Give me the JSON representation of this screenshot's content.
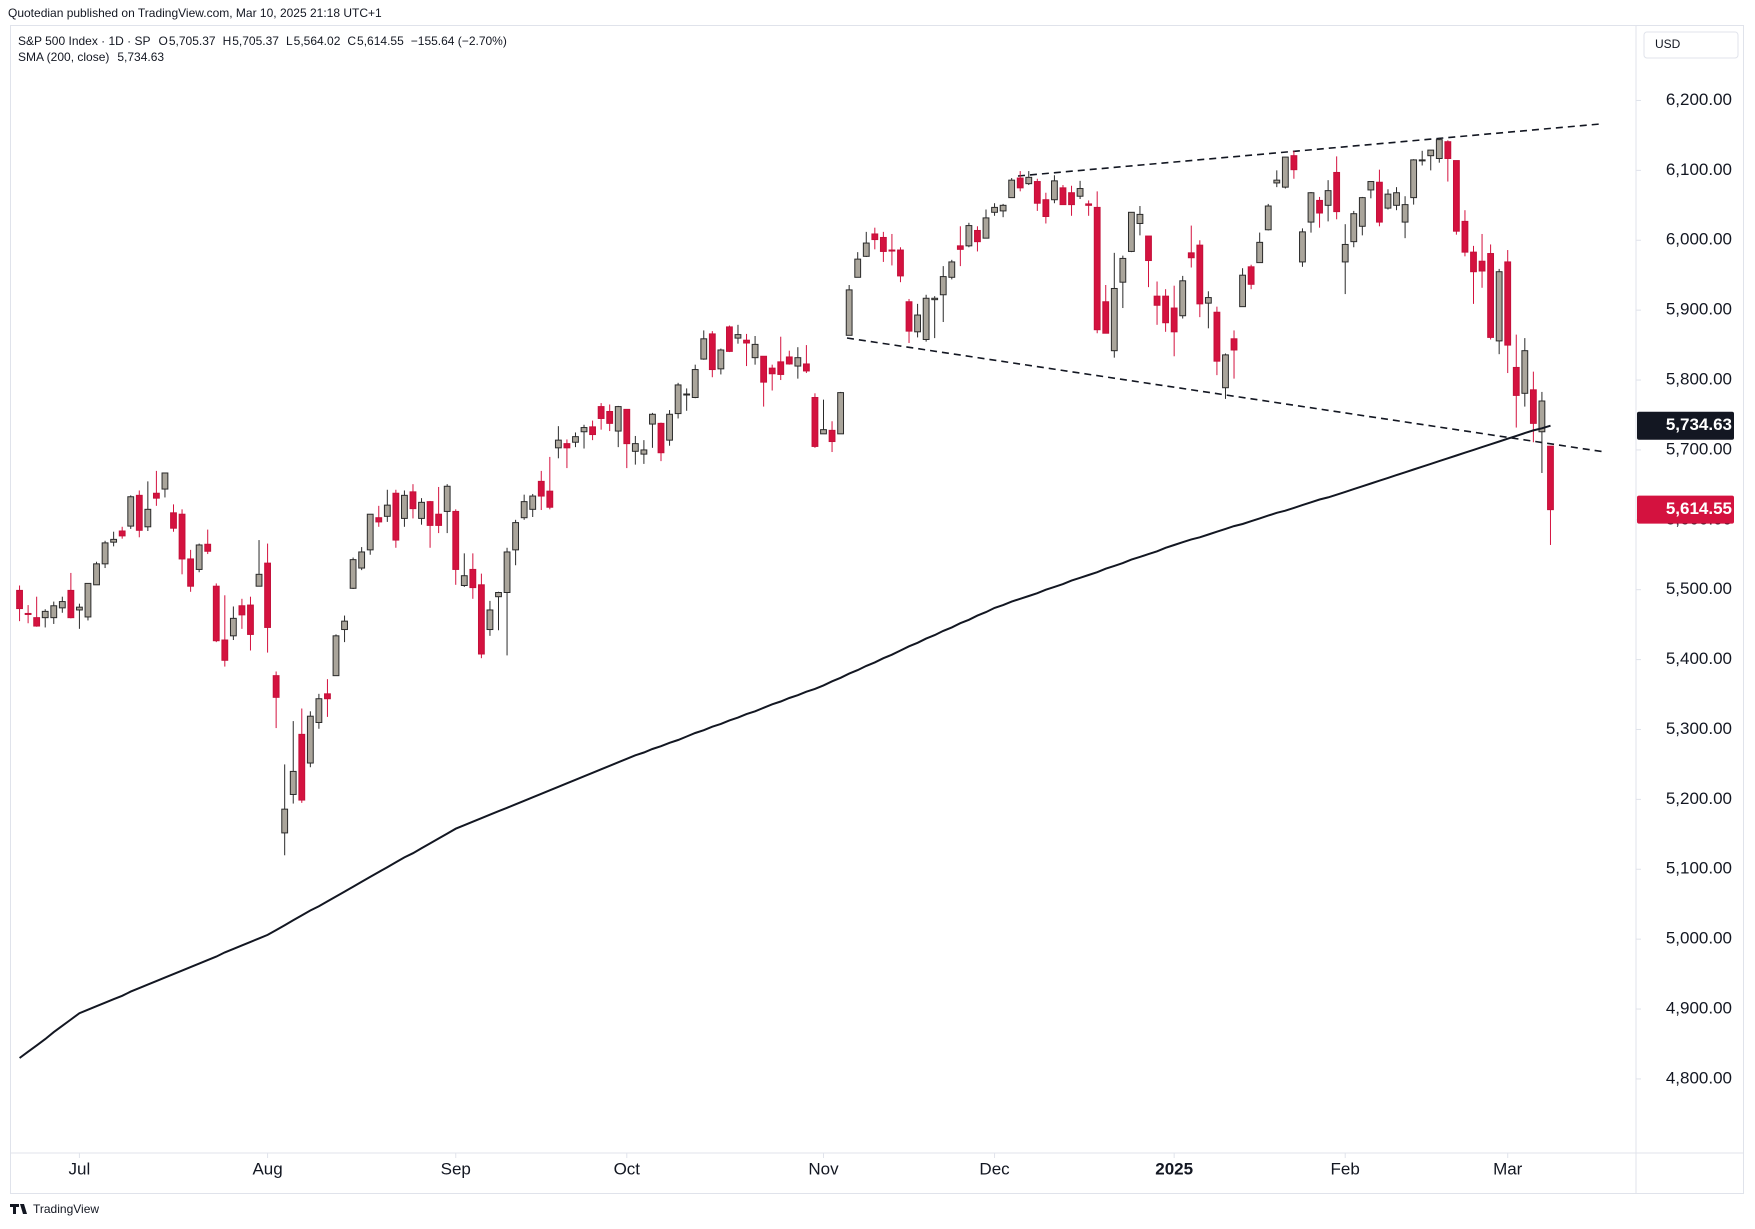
{
  "header": {
    "published": "Quotedian published on TradingView.com, Mar 10, 2025 21:18 UTC+1",
    "symbol": "S&P 500 Index · 1D · SP",
    "ohlc": [
      {
        "key": "O",
        "value": "5,705.37"
      },
      {
        "key": "H",
        "value": "5,705.37"
      },
      {
        "key": "L",
        "value": "5,564.02"
      },
      {
        "key": "C",
        "value": "5,614.55"
      }
    ],
    "change": "−155.64 (−2.70%)",
    "currency": "USD"
  },
  "footer": {
    "brand": "TradingView"
  },
  "chart_data": {
    "type": "candlestick",
    "up_color": "#aaa59b",
    "up_border": "#2a2a2a",
    "down_color": "#d4123f",
    "down_border": "#c4103a",
    "candles": [
      [
        5499,
        5506,
        5455,
        5473
      ],
      [
        5466,
        5478,
        5452,
        5465
      ],
      [
        5460,
        5490,
        5447,
        5448
      ],
      [
        5460,
        5472,
        5446,
        5469
      ],
      [
        5460,
        5483,
        5451,
        5477
      ],
      [
        5474,
        5490,
        5467,
        5483
      ],
      [
        5499,
        5524,
        5459,
        5460
      ],
      [
        5471,
        5480,
        5444,
        5475
      ],
      [
        5461,
        5509,
        5456,
        5509
      ],
      [
        5507,
        5540,
        5507,
        5537
      ],
      [
        5537,
        5570,
        5531,
        5567
      ],
      [
        5568,
        5583,
        5562,
        5572
      ],
      [
        5584,
        5590,
        5573,
        5577
      ],
      [
        5591,
        5635,
        5587,
        5633
      ],
      [
        5635,
        5642,
        5575,
        5585
      ],
      [
        5590,
        5655,
        5584,
        5615
      ],
      [
        5638,
        5670,
        5620,
        5631
      ],
      [
        5644,
        5667,
        5632,
        5667
      ],
      [
        5610,
        5622,
        5583,
        5588
      ],
      [
        5608,
        5615,
        5522,
        5544
      ],
      [
        5544,
        5557,
        5497,
        5505
      ],
      [
        5529,
        5566,
        5525,
        5564
      ],
      [
        5565,
        5586,
        5551,
        5555
      ],
      [
        5505,
        5509,
        5425,
        5427
      ],
      [
        5428,
        5492,
        5390,
        5399
      ],
      [
        5434,
        5476,
        5428,
        5459
      ],
      [
        5477,
        5487,
        5444,
        5464
      ],
      [
        5478,
        5490,
        5413,
        5436
      ],
      [
        5505,
        5571,
        5505,
        5522
      ],
      [
        5538,
        5566,
        5410,
        5446
      ],
      [
        5377,
        5383,
        5302,
        5346
      ],
      [
        5152,
        5250,
        5120,
        5186
      ],
      [
        5207,
        5312,
        5194,
        5240
      ],
      [
        5293,
        5330,
        5195,
        5199
      ],
      [
        5252,
        5326,
        5246,
        5319
      ],
      [
        5310,
        5351,
        5301,
        5344
      ],
      [
        5351,
        5372,
        5318,
        5344
      ],
      [
        5377,
        5436,
        5377,
        5434
      ],
      [
        5443,
        5463,
        5425,
        5455
      ],
      [
        5502,
        5546,
        5501,
        5543
      ],
      [
        5531,
        5561,
        5528,
        5554
      ],
      [
        5557,
        5608,
        5550,
        5608
      ],
      [
        5603,
        5620,
        5590,
        5597
      ],
      [
        5605,
        5643,
        5597,
        5621
      ],
      [
        5638,
        5643,
        5560,
        5571
      ],
      [
        5602,
        5642,
        5590,
        5635
      ],
      [
        5640,
        5651,
        5602,
        5616
      ],
      [
        5602,
        5631,
        5593,
        5625
      ],
      [
        5626,
        5627,
        5560,
        5592
      ],
      [
        5608,
        5647,
        5581,
        5592
      ],
      [
        5612,
        5651,
        5581,
        5648
      ],
      [
        5612,
        5615,
        5507,
        5529
      ],
      [
        5506,
        5552,
        5504,
        5520
      ],
      [
        5529,
        5552,
        5487,
        5503
      ],
      [
        5507,
        5523,
        5402,
        5408
      ],
      [
        5443,
        5484,
        5434,
        5471
      ],
      [
        5490,
        5497,
        5442,
        5496
      ],
      [
        5496,
        5560,
        5406,
        5554
      ],
      [
        5557,
        5600,
        5535,
        5596
      ],
      [
        5603,
        5636,
        5600,
        5626
      ],
      [
        5615,
        5637,
        5604,
        5634
      ],
      [
        5655,
        5670,
        5614,
        5634
      ],
      [
        5641,
        5690,
        5615,
        5618
      ],
      [
        5703,
        5734,
        5688,
        5714
      ],
      [
        5709,
        5715,
        5674,
        5703
      ],
      [
        5711,
        5725,
        5704,
        5719
      ],
      [
        5726,
        5736,
        5702,
        5732
      ],
      [
        5733,
        5742,
        5714,
        5722
      ],
      [
        5762,
        5767,
        5729,
        5745
      ],
      [
        5755,
        5765,
        5727,
        5738
      ],
      [
        5727,
        5763,
        5704,
        5762
      ],
      [
        5758,
        5758,
        5674,
        5709
      ],
      [
        5698,
        5720,
        5679,
        5709
      ],
      [
        5694,
        5714,
        5680,
        5700
      ],
      [
        5737,
        5753,
        5703,
        5751
      ],
      [
        5738,
        5739,
        5684,
        5696
      ],
      [
        5714,
        5757,
        5706,
        5751
      ],
      [
        5752,
        5796,
        5745,
        5793
      ],
      [
        5779,
        5788,
        5756,
        5780
      ],
      [
        5775,
        5822,
        5774,
        5815
      ],
      [
        5830,
        5871,
        5829,
        5859
      ],
      [
        5866,
        5870,
        5804,
        5815
      ],
      [
        5816,
        5845,
        5808,
        5843
      ],
      [
        5876,
        5878,
        5840,
        5841
      ],
      [
        5860,
        5879,
        5852,
        5865
      ],
      [
        5857,
        5866,
        5820,
        5853
      ],
      [
        5832,
        5863,
        5822,
        5851
      ],
      [
        5834,
        5834,
        5762,
        5797
      ],
      [
        5817,
        5822,
        5785,
        5809
      ],
      [
        5826,
        5862,
        5800,
        5808
      ],
      [
        5833,
        5842,
        5822,
        5823
      ],
      [
        5820,
        5847,
        5802,
        5832
      ],
      [
        5823,
        5850,
        5810,
        5813
      ],
      [
        5775,
        5781,
        5703,
        5705
      ],
      [
        5723,
        5772,
        5723,
        5729
      ],
      [
        5728,
        5741,
        5697,
        5712
      ],
      [
        5723,
        5783,
        5723,
        5782
      ],
      [
        5864,
        5936,
        5864,
        5929
      ],
      [
        5947,
        5983,
        5947,
        5973
      ],
      [
        5977,
        6012,
        5976,
        5996
      ],
      [
        6009,
        6018,
        5987,
        6001
      ],
      [
        6004,
        6012,
        5969,
        5984
      ],
      [
        5986,
        6009,
        5964,
        5985
      ],
      [
        5986,
        5990,
        5940,
        5949
      ],
      [
        5912,
        5916,
        5853,
        5870
      ],
      [
        5869,
        5909,
        5861,
        5893
      ],
      [
        5858,
        5922,
        5855,
        5917
      ],
      [
        5915,
        5920,
        5860,
        5917
      ],
      [
        5922,
        5963,
        5883,
        5948
      ],
      [
        5947,
        5972,
        5944,
        5969
      ],
      [
        5992,
        6020,
        5963,
        5987
      ],
      [
        5992,
        6025,
        5990,
        6021
      ],
      [
        6014,
        6020,
        5984,
        5998
      ],
      [
        6003,
        6044,
        6003,
        6032
      ],
      [
        6040,
        6053,
        6035,
        6047
      ],
      [
        6042,
        6052,
        6033,
        6050
      ],
      [
        6061,
        6089,
        6061,
        6086
      ],
      [
        6089,
        6099,
        6070,
        6075
      ],
      [
        6081,
        6099,
        6079,
        6090
      ],
      [
        6084,
        6088,
        6042,
        6053
      ],
      [
        6058,
        6068,
        6024,
        6034
      ],
      [
        6058,
        6093,
        6053,
        6085
      ],
      [
        6075,
        6079,
        6051,
        6051
      ],
      [
        6068,
        6078,
        6035,
        6051
      ],
      [
        6063,
        6085,
        6059,
        6074
      ],
      [
        6052,
        6057,
        6035,
        6050
      ],
      [
        6047,
        6070,
        5867,
        5872
      ],
      [
        5912,
        5936,
        5867,
        5867
      ],
      [
        5842,
        5982,
        5832,
        5931
      ],
      [
        5940,
        5978,
        5903,
        5974
      ],
      [
        5984,
        6040,
        5983,
        6040
      ],
      [
        6024,
        6049,
        6007,
        6037
      ],
      [
        6006,
        6006,
        5933,
        5971
      ],
      [
        5920,
        5941,
        5879,
        5907
      ],
      [
        5920,
        5930,
        5869,
        5882
      ],
      [
        5903,
        5935,
        5834,
        5869
      ],
      [
        5892,
        5949,
        5888,
        5942
      ],
      [
        5982,
        6021,
        5961,
        5975
      ],
      [
        5993,
        6000,
        5890,
        5909
      ],
      [
        5910,
        5927,
        5874,
        5918
      ],
      [
        5897,
        5905,
        5807,
        5827
      ],
      [
        5789,
        5838,
        5773,
        5836
      ],
      [
        5859,
        5871,
        5802,
        5843
      ],
      [
        5905,
        5960,
        5905,
        5950
      ],
      [
        5962,
        5965,
        5930,
        5937
      ],
      [
        5968,
        6011,
        5968,
        5997
      ],
      [
        6015,
        6052,
        6014,
        6049
      ],
      [
        6082,
        6100,
        6076,
        6086
      ],
      [
        6076,
        6119,
        6074,
        6119
      ],
      [
        6121,
        6128,
        6088,
        6101
      ],
      [
        5969,
        6017,
        5962,
        6012
      ],
      [
        6026,
        6069,
        6011,
        6068
      ],
      [
        6057,
        6062,
        6018,
        6039
      ],
      [
        6050,
        6086,
        6027,
        6071
      ],
      [
        6097,
        6120,
        6030,
        6041
      ],
      [
        5969,
        6023,
        5923,
        5994
      ],
      [
        5998,
        6042,
        5990,
        6038
      ],
      [
        6020,
        6062,
        6007,
        6061
      ],
      [
        6072,
        6084,
        6060,
        6084
      ],
      [
        6083,
        6101,
        6020,
        6026
      ],
      [
        6046,
        6073,
        6044,
        6066
      ],
      [
        6050,
        6076,
        6043,
        6068
      ],
      [
        6026,
        6063,
        6003,
        6051
      ],
      [
        6061,
        6116,
        6051,
        6115
      ],
      [
        6114,
        6128,
        6107,
        6115
      ],
      [
        6121,
        6129,
        6100,
        6129
      ],
      [
        6117,
        6147,
        6111,
        6144
      ],
      [
        6141,
        6143,
        6084,
        6117
      ],
      [
        6114,
        6114,
        6008,
        6013
      ],
      [
        6027,
        6043,
        5977,
        5983
      ],
      [
        5983,
        5992,
        5909,
        5955
      ],
      [
        5970,
        6009,
        5932,
        5956
      ],
      [
        5981,
        5994,
        5858,
        5861
      ],
      [
        5856,
        5959,
        5837,
        5955
      ],
      [
        5969,
        5986,
        5810,
        5850
      ],
      [
        5818,
        5865,
        5732,
        5778
      ],
      [
        5781,
        5860,
        5762,
        5842
      ],
      [
        5786,
        5812,
        5711,
        5738
      ],
      [
        5726,
        5783,
        5667,
        5770
      ],
      [
        5705.37,
        5705.37,
        5564.02,
        5614.55
      ]
    ],
    "sma": {
      "name": "SMA (200, close)",
      "color": "#131722",
      "values": [
        4830,
        4839,
        4848,
        4857,
        4867,
        4876,
        4885,
        4894,
        4899,
        4904,
        4909,
        4914,
        4919,
        4925,
        4930,
        4935,
        4940,
        4945,
        4950,
        4955,
        4960,
        4965,
        4970,
        4975,
        4981,
        4986,
        4991,
        4996,
        5001,
        5006,
        5013,
        5020,
        5027,
        5034,
        5041,
        5047,
        5054,
        5061,
        5068,
        5075,
        5082,
        5089,
        5096,
        5103,
        5110,
        5117,
        5123,
        5130,
        5137,
        5144,
        5151,
        5158,
        5163,
        5168,
        5173,
        5178,
        5183,
        5188,
        5193,
        5198,
        5203,
        5208,
        5213,
        5218,
        5223,
        5228,
        5233,
        5238,
        5243,
        5248,
        5253,
        5258,
        5263,
        5267,
        5272,
        5276,
        5281,
        5285,
        5290,
        5295,
        5299,
        5304,
        5308,
        5313,
        5317,
        5322,
        5326,
        5331,
        5336,
        5340,
        5345,
        5349,
        5354,
        5358,
        5363,
        5369,
        5374,
        5380,
        5385,
        5391,
        5396,
        5402,
        5407,
        5413,
        5419,
        5424,
        5430,
        5435,
        5441,
        5446,
        5452,
        5457,
        5463,
        5468,
        5474,
        5478,
        5483,
        5487,
        5491,
        5495,
        5500,
        5504,
        5508,
        5513,
        5517,
        5521,
        5525,
        5530,
        5534,
        5538,
        5543,
        5547,
        5551,
        5555,
        5560,
        5564,
        5568,
        5572,
        5575,
        5579,
        5583,
        5587,
        5591,
        5594,
        5598,
        5602,
        5606,
        5610,
        5613,
        5617,
        5621,
        5625,
        5629,
        5632,
        5636,
        5640,
        5644,
        5648,
        5652,
        5656,
        5660,
        5664,
        5668,
        5672,
        5676,
        5680,
        5684,
        5688,
        5692,
        5696,
        5700,
        5704,
        5708,
        5712,
        5716,
        5720,
        5724,
        5728,
        5731,
        5734.63
      ]
    },
    "price_labels": [
      {
        "value": 5734.63,
        "label": "5,734.63",
        "color": "#131722"
      },
      {
        "value": 5614.55,
        "label": "5,614.55",
        "color": "#d4123f"
      }
    ],
    "xlim": [
      -1,
      189
    ],
    "ylim": [
      4694,
      6308
    ],
    "xticks": [
      {
        "value": 7,
        "label": "Jul"
      },
      {
        "value": 29,
        "label": "Aug"
      },
      {
        "value": 51,
        "label": "Sep"
      },
      {
        "value": 71,
        "label": "Oct"
      },
      {
        "value": 94,
        "label": "Nov"
      },
      {
        "value": 114,
        "label": "Dec"
      },
      {
        "value": 135,
        "label": "2025"
      },
      {
        "value": 155,
        "label": "Feb"
      },
      {
        "value": 174,
        "label": "Mar"
      }
    ],
    "yticks": [
      {
        "value": 4800,
        "label": "4,800.00"
      },
      {
        "value": 4900,
        "label": "4,900.00"
      },
      {
        "value": 5000,
        "label": "5,000.00"
      },
      {
        "value": 5100,
        "label": "5,100.00"
      },
      {
        "value": 5200,
        "label": "5,200.00"
      },
      {
        "value": 5300,
        "label": "5,300.00"
      },
      {
        "value": 5400,
        "label": "5,400.00"
      },
      {
        "value": 5500,
        "label": "5,500.00"
      },
      {
        "value": 5600,
        "label": "5,600.00"
      },
      {
        "value": 5700,
        "label": "5,700.00"
      },
      {
        "value": 5800,
        "label": "5,800.00"
      },
      {
        "value": 5900,
        "label": "5,900.00"
      },
      {
        "value": 6000,
        "label": "6,000.00"
      },
      {
        "value": 6100,
        "label": "6,100.00"
      },
      {
        "value": 6200,
        "label": "6,200.00"
      }
    ],
    "grid": false
  }
}
